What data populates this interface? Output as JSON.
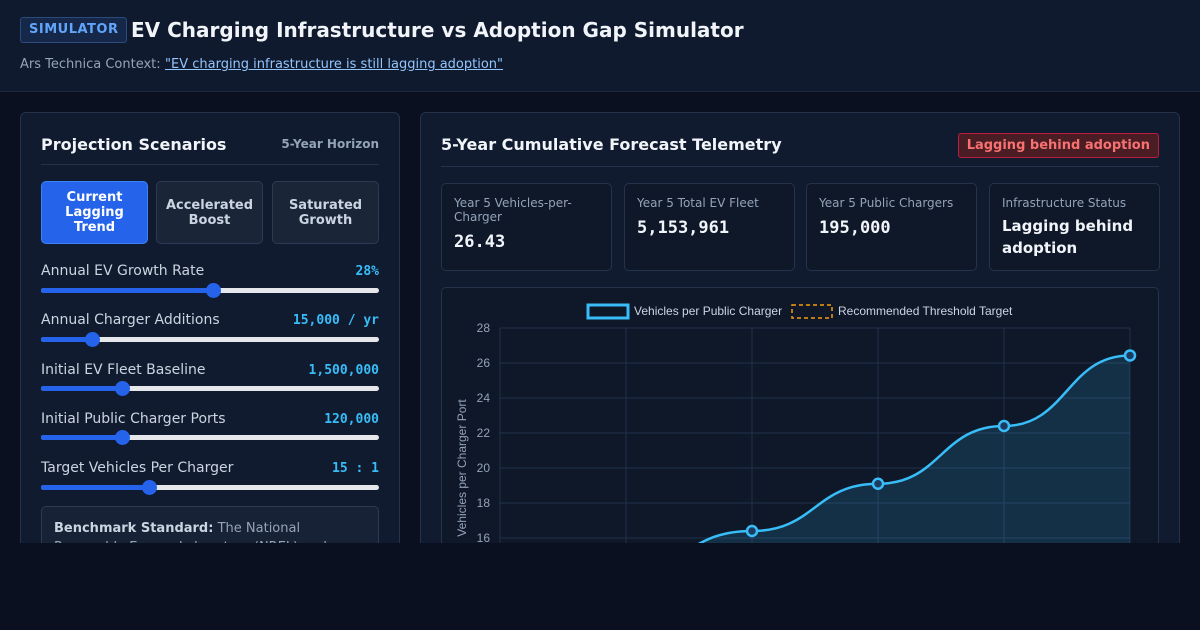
{
  "header": {
    "badge": "SIMULATOR",
    "title": "EV Charging Infrastructure vs Adoption Gap Simulator",
    "context_label": "Ars Technica Context:",
    "context_link": "\"EV charging infrastructure is still lagging adoption\""
  },
  "scenarios_panel": {
    "title": "Projection Scenarios",
    "horizon": "5-Year Horizon",
    "scenarios": [
      {
        "label": "Current Lagging Trend",
        "active": true
      },
      {
        "label": "Accelerated Boost",
        "active": false
      },
      {
        "label": "Saturated Growth",
        "active": false
      }
    ],
    "sliders": [
      {
        "label": "Annual EV Growth Rate",
        "value": "28%",
        "fraction": 0.51
      },
      {
        "label": "Annual Charger Additions",
        "value": "15,000 / yr",
        "fraction": 0.15
      },
      {
        "label": "Initial EV Fleet Baseline",
        "value": "1,500,000",
        "fraction": 0.24
      },
      {
        "label": "Initial Public Charger Ports",
        "value": "120,000",
        "fraction": 0.24
      },
      {
        "label": "Target Vehicles Per Charger",
        "value": "15 : 1",
        "fraction": 0.32
      }
    ],
    "benchmark_label": "Benchmark Standard:",
    "benchmark_text": "The National Renewable Energy Laboratory (NREL) and"
  },
  "forecast_panel": {
    "title": "5-Year Cumulative Forecast Telemetry",
    "status": "Lagging behind adoption",
    "cards": [
      {
        "label": "Year 5 Vehicles-per-Charger",
        "value": "26.43"
      },
      {
        "label": "Year 5 Total EV Fleet",
        "value": "5,153,961"
      },
      {
        "label": "Year 5 Public Chargers",
        "value": "195,000"
      },
      {
        "label": "Infrastructure Status",
        "value": "Lagging behind adoption"
      }
    ]
  },
  "colors": {
    "accent": "#2563eb",
    "series_line": "#38bdf8",
    "threshold": "#f59e0b",
    "status_red": "#f87171"
  },
  "chart_data": {
    "type": "line",
    "legend": [
      "Vehicles per Public Charger",
      "Recommended Threshold Target"
    ],
    "legend_position": "top-center",
    "ylabel": "Vehicles per Charger Port",
    "ylim": [
      16,
      28
    ],
    "yticks": [
      16,
      18,
      20,
      22,
      24,
      26,
      28
    ],
    "grid": true,
    "series": [
      {
        "name": "Vehicles per Public Charger",
        "x": [
          2,
          3,
          4,
          5
        ],
        "y": [
          16.4,
          19.1,
          22.4,
          26.43
        ]
      }
    ]
  }
}
